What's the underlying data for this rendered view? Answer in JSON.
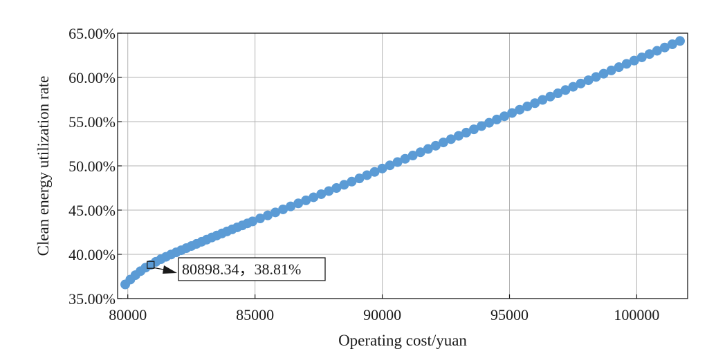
{
  "chart_data": {
    "type": "scatter",
    "title": "",
    "xlabel": "Operating cost/yuan",
    "ylabel": "Clean energy utilization rate",
    "xlim": [
      79600,
      102000
    ],
    "ylim": [
      35,
      65
    ],
    "x_ticks": [
      80000,
      85000,
      90000,
      95000,
      100000
    ],
    "x_tick_labels": [
      "80000",
      "85000",
      "90000",
      "95000",
      "100000"
    ],
    "y_ticks": [
      35,
      40,
      45,
      50,
      55,
      60,
      65
    ],
    "y_tick_labels": [
      "35.00%",
      "40.00%",
      "45.00%",
      "50.00%",
      "55.00%",
      "60.00%",
      "65.00%"
    ],
    "grid": true,
    "marker_color": "#5b9bd5",
    "series": [
      {
        "x": [
          79900,
          80100,
          80300,
          80500,
          80700,
          80898.34,
          81100,
          81300,
          81500,
          81700,
          81900,
          82100,
          82300,
          82500,
          82700,
          82900,
          83100,
          83300,
          83500,
          83700,
          83900,
          84100,
          84300,
          84500,
          84700,
          84900,
          85200,
          85500,
          85800,
          86100,
          86400,
          86700,
          87000,
          87300,
          87600,
          87900,
          88200,
          88500,
          88800,
          89100,
          89400,
          89700,
          90000,
          90300,
          90600,
          90900,
          91200,
          91500,
          91800,
          92100,
          92400,
          92700,
          93000,
          93300,
          93600,
          93900,
          94200,
          94500,
          94800,
          95100,
          95400,
          95700,
          96000,
          96300,
          96600,
          96900,
          97200,
          97500,
          97800,
          98100,
          98400,
          98700,
          99000,
          99300,
          99600,
          99900,
          100200,
          100500,
          100800,
          101100,
          101400,
          101700
        ],
        "values": [
          36.6,
          37.15,
          37.65,
          38.1,
          38.5,
          38.81,
          39.15,
          39.45,
          39.72,
          39.98,
          40.22,
          40.46,
          40.7,
          40.94,
          41.18,
          41.42,
          41.66,
          41.9,
          42.13,
          42.36,
          42.59,
          42.82,
          43.05,
          43.27,
          43.5,
          43.72,
          44.06,
          44.4,
          44.74,
          45.08,
          45.42,
          45.76,
          46.1,
          46.45,
          46.8,
          47.15,
          47.5,
          47.86,
          48.22,
          48.58,
          48.95,
          49.32,
          49.7,
          50.06,
          50.43,
          50.8,
          51.17,
          51.54,
          51.91,
          52.28,
          52.65,
          53.02,
          53.39,
          53.76,
          54.13,
          54.5,
          54.87,
          55.24,
          55.61,
          55.98,
          56.35,
          56.72,
          57.09,
          57.46,
          57.83,
          58.2,
          58.57,
          58.94,
          59.31,
          59.68,
          60.05,
          60.42,
          60.79,
          61.16,
          61.53,
          61.9,
          62.27,
          62.64,
          63.01,
          63.38,
          63.75,
          64.12
        ]
      }
    ],
    "annotation": {
      "x": 80898.34,
      "y": 38.81,
      "label": "80898.34，38.81%"
    }
  }
}
